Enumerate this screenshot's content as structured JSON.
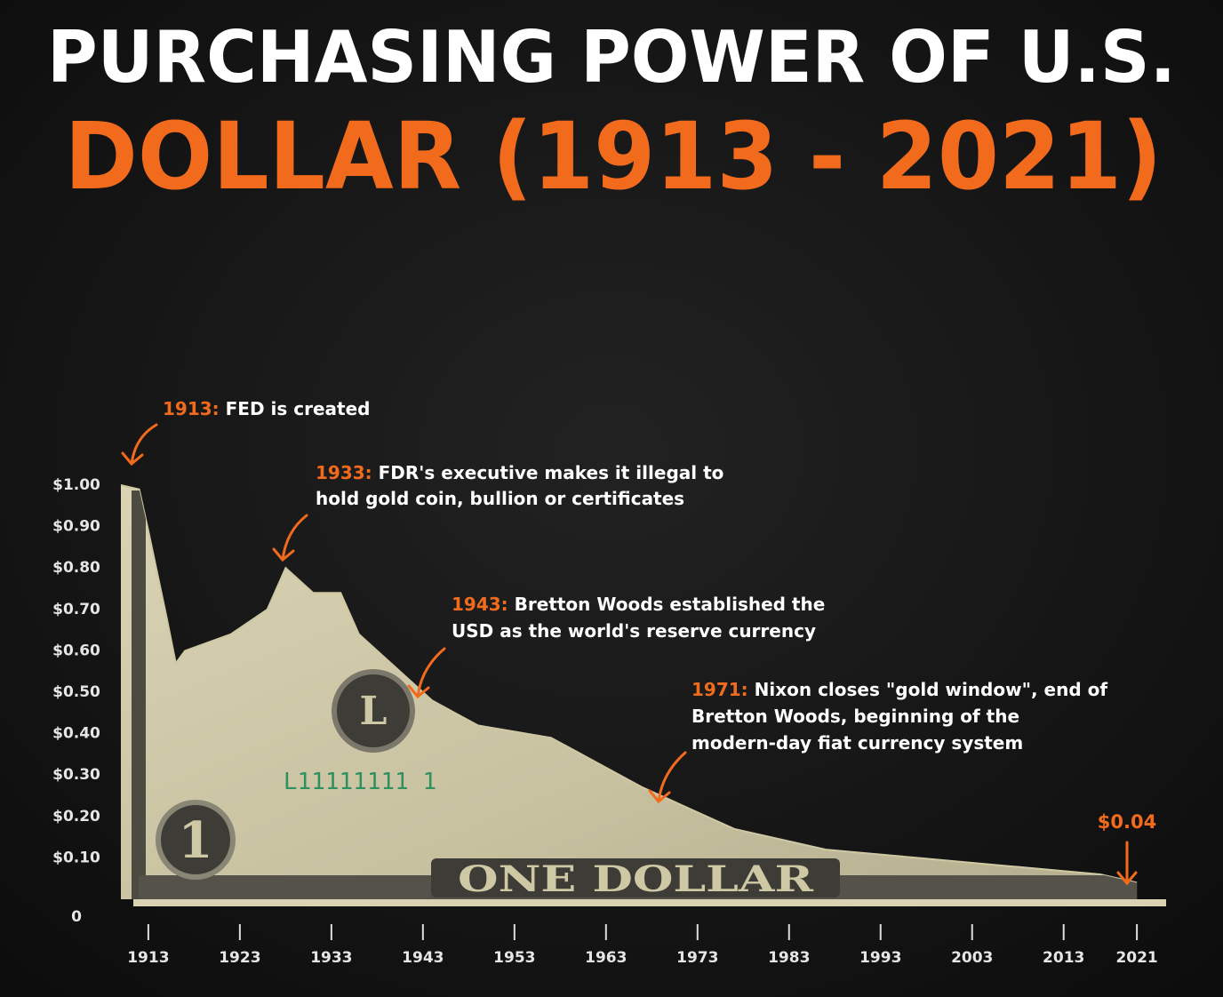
{
  "chart_data": {
    "type": "area",
    "title": "PURCHASING POWER OF U.S.",
    "subtitle": "DOLLAR (1913 - 2021)",
    "x": [
      1910,
      1912,
      1913,
      1915,
      1916,
      1917,
      1922,
      1926,
      1928,
      1931,
      1934,
      1936,
      1940,
      1944,
      1949,
      1957,
      1962,
      1967,
      1973,
      1977,
      1987,
      1997,
      2007,
      2017,
      2021
    ],
    "values": [
      1.0,
      0.99,
      0.89,
      0.68,
      0.57,
      0.6,
      0.64,
      0.7,
      0.8,
      0.74,
      0.74,
      0.64,
      0.56,
      0.48,
      0.42,
      0.39,
      0.33,
      0.27,
      0.21,
      0.17,
      0.12,
      0.1,
      0.08,
      0.06,
      0.04
    ],
    "color": "#cfc8a4",
    "xlim": [
      1910,
      2024
    ],
    "xticks": [
      1913,
      1923,
      1933,
      1943,
      1953,
      1963,
      1973,
      1983,
      1993,
      2003,
      2013,
      2021
    ],
    "ylim": [
      0,
      1.0
    ],
    "yticks": [
      0,
      {
        "value": 0.1,
        "label": "$0.10"
      },
      {
        "value": 0.2,
        "label": "$0.20"
      },
      {
        "value": 0.3,
        "label": "$0.30"
      },
      {
        "value": 0.4,
        "label": "$0.40"
      },
      {
        "value": 0.5,
        "label": "$0.50"
      },
      {
        "value": 0.6,
        "label": "$0.60"
      },
      {
        "value": 0.7,
        "label": "$0.70"
      },
      {
        "value": 0.8,
        "label": "$0.80"
      },
      {
        "value": 0.9,
        "label": "$0.90"
      },
      {
        "value": 1.0,
        "label": "$1.00"
      }
    ],
    "annotations": [
      {
        "label": "1913:",
        "lines": [
          "FED is created"
        ]
      },
      {
        "label": "1933:",
        "lines": [
          "FDR's executive makes it illegal to",
          "hold gold coin, bullion or certificates"
        ]
      },
      {
        "label": "1943:",
        "lines": [
          "Bretton Woods established the",
          "USD as the world's reserve currency"
        ]
      },
      {
        "label": "1971:",
        "lines": [
          "Nixon closes \"gold window\", end of",
          "Bretton Woods, beginning of the",
          "modern-day fiat currency system"
        ]
      }
    ],
    "end_label": "$0.04"
  },
  "bill": {
    "caption": "ONE DOLLAR",
    "serial": "L11111111 1",
    "seal": "L",
    "denomination": "1"
  }
}
